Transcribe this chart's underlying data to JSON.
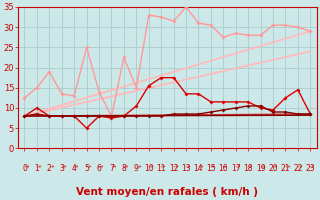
{
  "xlabel": "Vent moyen/en rafales ( km/h )",
  "xlim": [
    -0.5,
    23.5
  ],
  "ylim": [
    0,
    35
  ],
  "yticks": [
    0,
    5,
    10,
    15,
    20,
    25,
    30,
    35
  ],
  "xticks": [
    0,
    1,
    2,
    3,
    4,
    5,
    6,
    7,
    8,
    9,
    10,
    11,
    12,
    13,
    14,
    15,
    16,
    17,
    18,
    19,
    20,
    21,
    22,
    23
  ],
  "background_color": "#cce8e8",
  "grid_color": "#aacccc",
  "series": [
    {
      "x": [
        0,
        1,
        2,
        3,
        4,
        5,
        6,
        7,
        8,
        9,
        10,
        11,
        12,
        13,
        14,
        15,
        16,
        17,
        18,
        19,
        20,
        21,
        22,
        23
      ],
      "y": [
        12.5,
        15.0,
        19.0,
        13.5,
        13.0,
        25.0,
        14.0,
        8.0,
        22.5,
        15.0,
        33.0,
        32.5,
        31.5,
        35.0,
        31.0,
        30.5,
        27.5,
        28.5,
        28.0,
        28.0,
        30.5,
        30.5,
        30.0,
        29.0
      ],
      "color": "#ff9999",
      "lw": 1.0,
      "marker": "D",
      "ms": 2.0,
      "zorder": 3
    },
    {
      "x": [
        0,
        1,
        2,
        3,
        4,
        5,
        6,
        7,
        8,
        9,
        10,
        11,
        12,
        13,
        14,
        15,
        16,
        17,
        18,
        19,
        20,
        21,
        22,
        23
      ],
      "y": [
        8.0,
        10.0,
        8.0,
        8.0,
        8.0,
        5.0,
        8.0,
        7.5,
        8.0,
        10.5,
        15.5,
        17.5,
        17.5,
        13.5,
        13.5,
        11.5,
        11.5,
        11.5,
        11.5,
        10.0,
        9.5,
        12.5,
        14.5,
        8.5
      ],
      "color": "#dd0000",
      "lw": 1.0,
      "marker": "D",
      "ms": 2.0,
      "zorder": 4
    },
    {
      "x": [
        0,
        1,
        2,
        3,
        4,
        5,
        6,
        7,
        8,
        9,
        10,
        11,
        12,
        13,
        14,
        15,
        16,
        17,
        18,
        19,
        20,
        21,
        22,
        23
      ],
      "y": [
        8.0,
        8.5,
        8.0,
        8.0,
        8.0,
        8.0,
        8.0,
        8.0,
        8.0,
        8.0,
        8.0,
        8.0,
        8.5,
        8.5,
        8.5,
        9.0,
        9.5,
        10.0,
        10.5,
        10.5,
        9.0,
        9.0,
        8.5,
        8.5
      ],
      "color": "#880000",
      "lw": 1.0,
      "marker": "D",
      "ms": 2.0,
      "zorder": 4
    },
    {
      "x": [
        0,
        23
      ],
      "y": [
        8.0,
        29.0
      ],
      "color": "#ffbbbb",
      "lw": 1.3,
      "marker": null,
      "ms": 0,
      "zorder": 2
    },
    {
      "x": [
        0,
        23
      ],
      "y": [
        8.0,
        24.0
      ],
      "color": "#ffbbbb",
      "lw": 1.3,
      "marker": null,
      "ms": 0,
      "zorder": 2
    },
    {
      "x": [
        0,
        23
      ],
      "y": [
        8.0,
        8.5
      ],
      "color": "#cc3333",
      "lw": 1.0,
      "marker": null,
      "ms": 0,
      "zorder": 2
    },
    {
      "x": [
        0,
        23
      ],
      "y": [
        8.0,
        8.2
      ],
      "color": "#880000",
      "lw": 1.0,
      "marker": null,
      "ms": 0,
      "zorder": 2
    }
  ],
  "wind_arrow_color": "#cc0000",
  "xlabel_color": "#cc0000",
  "tick_color": "#cc0000",
  "tick_fontsize": 5.5,
  "xlabel_fontsize": 7.5,
  "xlabel_bold": true
}
